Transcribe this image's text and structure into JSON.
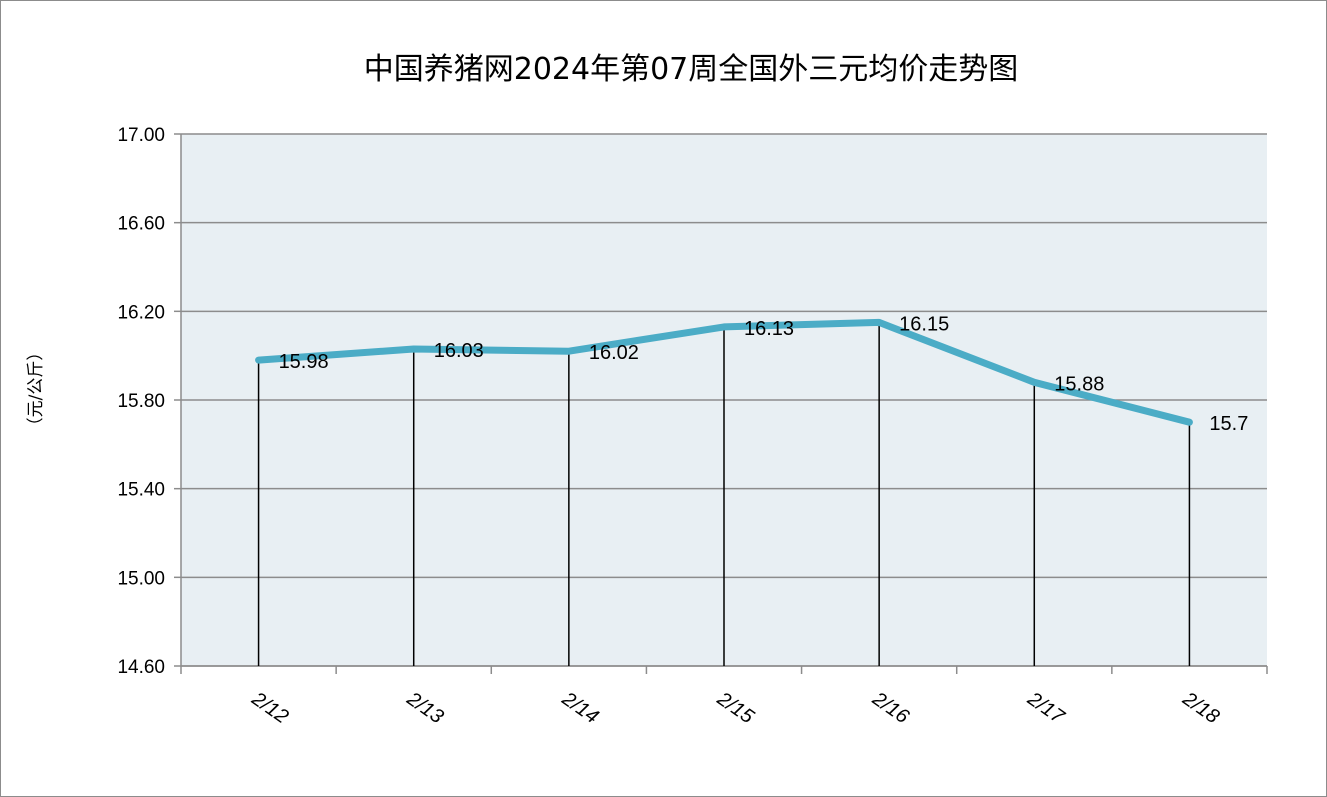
{
  "chart_data": {
    "type": "line",
    "title": "中国养猪网2024年第07周全国外三元均价走势图",
    "xlabel": "",
    "ylabel": "（元/公斤）",
    "categories": [
      "2/12",
      "2/13",
      "2/14",
      "2/15",
      "2/16",
      "2/17",
      "2/18"
    ],
    "series": [
      {
        "values": [
          15.98,
          16.03,
          16.02,
          16.13,
          16.15,
          15.88,
          15.7
        ],
        "labels": [
          "15.98",
          "16.03",
          "16.02",
          "16.13",
          "16.15",
          "15.88",
          "15.7"
        ],
        "color": "#4bacc6"
      }
    ],
    "ylim": [
      14.6,
      17.0
    ],
    "yticks": [
      14.6,
      15.0,
      15.4,
      15.8,
      16.2,
      16.6,
      17.0
    ],
    "ytick_labels": [
      "14.60",
      "15.00",
      "15.40",
      "15.80",
      "16.20",
      "16.60",
      "17.00"
    ],
    "grid": true,
    "drop_lines": true,
    "legend": "none",
    "colors": {
      "plot_background": "#e8eff3",
      "gridline": "#8c8c8c",
      "line": "#4bacc6",
      "drop_line": "#000000"
    }
  }
}
